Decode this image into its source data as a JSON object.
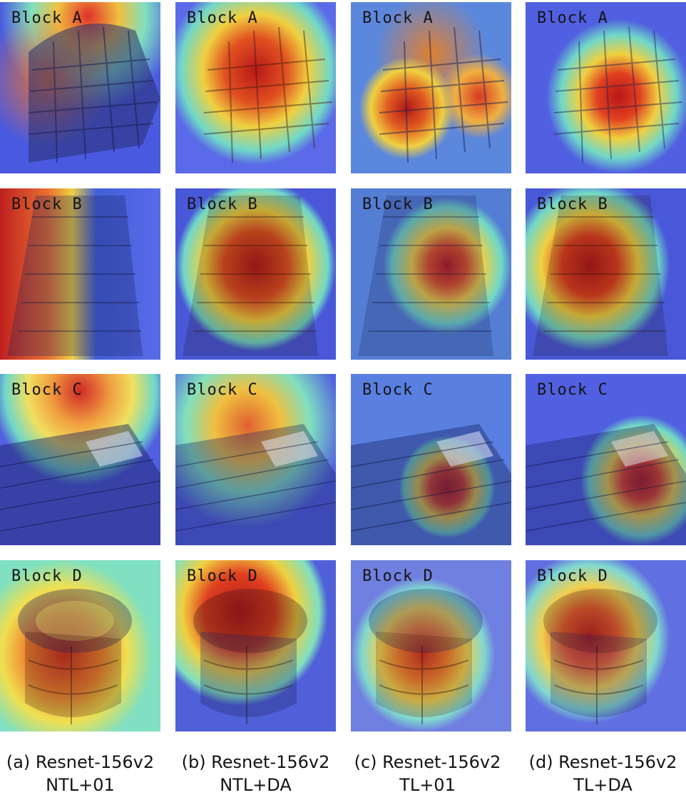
{
  "figure": {
    "rows": [
      {
        "label": "Block A"
      },
      {
        "label": "Block B"
      },
      {
        "label": "Block C"
      },
      {
        "label": "Block D"
      }
    ],
    "columns": [
      {
        "caption_line1": "(a) Resnet-156v2",
        "caption_line2": "NTL+01"
      },
      {
        "caption_line1": "(b) Resnet-156v2",
        "caption_line2": "NTL+DA"
      },
      {
        "caption_line1": "(c) Resnet-156v2",
        "caption_line2": "TL+01"
      },
      {
        "caption_line1": "(d) Resnet-156v2",
        "caption_line2": "TL+DA"
      }
    ],
    "colors": {
      "heat_low": "#2e3cc8",
      "heat_mid": "#6fe0c8",
      "heat_warm": "#f0e040",
      "heat_high": "#c81e1e"
    }
  }
}
